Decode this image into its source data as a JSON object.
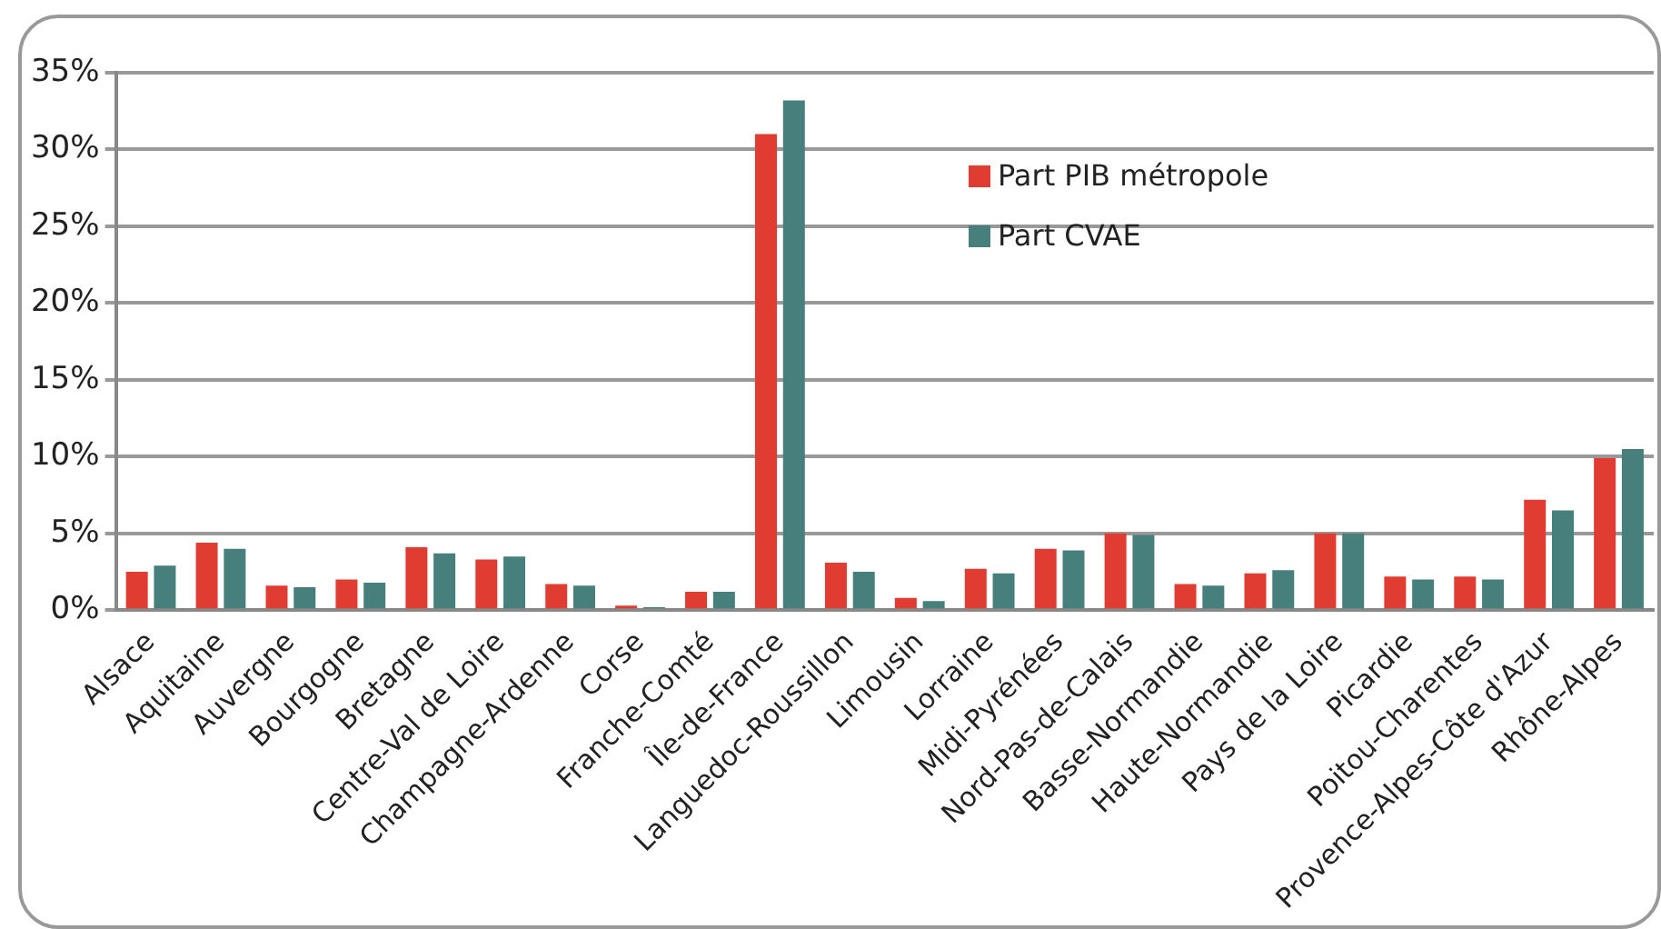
{
  "chart_data": {
    "type": "bar",
    "categories": [
      "Alsace",
      "Aquitaine",
      "Auvergne",
      "Bourgogne",
      "Bretagne",
      "Centre-Val de Loire",
      "Champagne-Ardenne",
      "Corse",
      "Franche-Comté",
      "Île-de-France",
      "Languedoc-Roussillon",
      "Limousin",
      "Lorraine",
      "Midi-Pyrénées",
      "Nord-Pas-de-Calais",
      "Basse-Normandie",
      "Haute-Normandie",
      "Pays de la Loire",
      "Picardie",
      "Poitou-Charentes",
      "Provence-Alpes-Côte d'Azur",
      "Rhône-Alpes"
    ],
    "series": [
      {
        "name": "Part PIB métropole",
        "color": "#e03c31",
        "values": [
          2.5,
          4.4,
          1.6,
          2.0,
          4.1,
          3.3,
          1.7,
          0.3,
          1.2,
          31.0,
          3.1,
          0.8,
          2.7,
          4.0,
          5.0,
          1.7,
          2.4,
          5.0,
          2.2,
          2.2,
          7.2,
          9.9
        ]
      },
      {
        "name": "Part CVAE",
        "color": "#467f7b",
        "values": [
          2.9,
          4.0,
          1.5,
          1.8,
          3.7,
          3.5,
          1.6,
          0.2,
          1.2,
          33.2,
          2.5,
          0.6,
          2.4,
          3.9,
          4.9,
          1.6,
          2.6,
          5.0,
          2.0,
          2.0,
          6.5,
          10.5
        ]
      }
    ],
    "ylim": [
      0,
      35
    ],
    "yticks": [
      {
        "value": 0,
        "label": "0%"
      },
      {
        "value": 5,
        "label": "5%"
      },
      {
        "value": 10,
        "label": "10%"
      },
      {
        "value": 15,
        "label": "15%"
      },
      {
        "value": 20,
        "label": "20%"
      },
      {
        "value": 25,
        "label": "25%"
      },
      {
        "value": 30,
        "label": "30%"
      },
      {
        "value": 35,
        "label": "35%"
      }
    ],
    "grid": "y",
    "legend": "top"
  }
}
